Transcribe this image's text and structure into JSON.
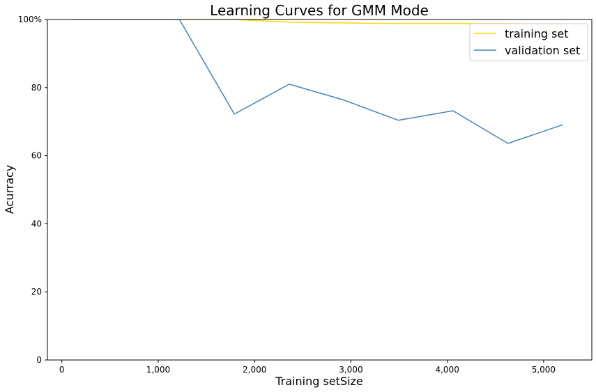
{
  "chart_data": {
    "type": "line",
    "title": "Learning Curves for GMM Mode",
    "xlabel": "Training setSize",
    "ylabel": "Acurracy",
    "xlim": [
      -150,
      5500
    ],
    "ylim": [
      0,
      100
    ],
    "x_ticks": [
      0,
      1000,
      2000,
      3000,
      4000,
      5000
    ],
    "x_tick_labels": [
      "0",
      "1,000",
      "2,000",
      "3,000",
      "4,000",
      "5,000"
    ],
    "y_ticks": [
      0,
      20,
      40,
      60,
      80,
      100
    ],
    "y_tick_labels": [
      "0",
      "20",
      "40",
      "60",
      "80",
      "100%"
    ],
    "grid": false,
    "legend_position": "top-right",
    "series": [
      {
        "name": "training set",
        "color": "#ffd700",
        "x": [
          100,
          660,
          1220,
          1790,
          2360,
          2920,
          3490,
          4060,
          4630,
          5200
        ],
        "y": [
          100,
          100,
          100,
          100,
          99.2,
          99.0,
          98.8,
          98.8,
          98.8,
          98.6
        ]
      },
      {
        "name": "validation set",
        "color": "#4682b4",
        "x": [
          100,
          660,
          1220,
          1790,
          2360,
          2920,
          3490,
          4060,
          4630,
          5200
        ],
        "y": [
          100,
          100,
          100,
          72.2,
          81.0,
          76.4,
          70.4,
          73.2,
          63.6,
          69.1
        ]
      }
    ]
  }
}
